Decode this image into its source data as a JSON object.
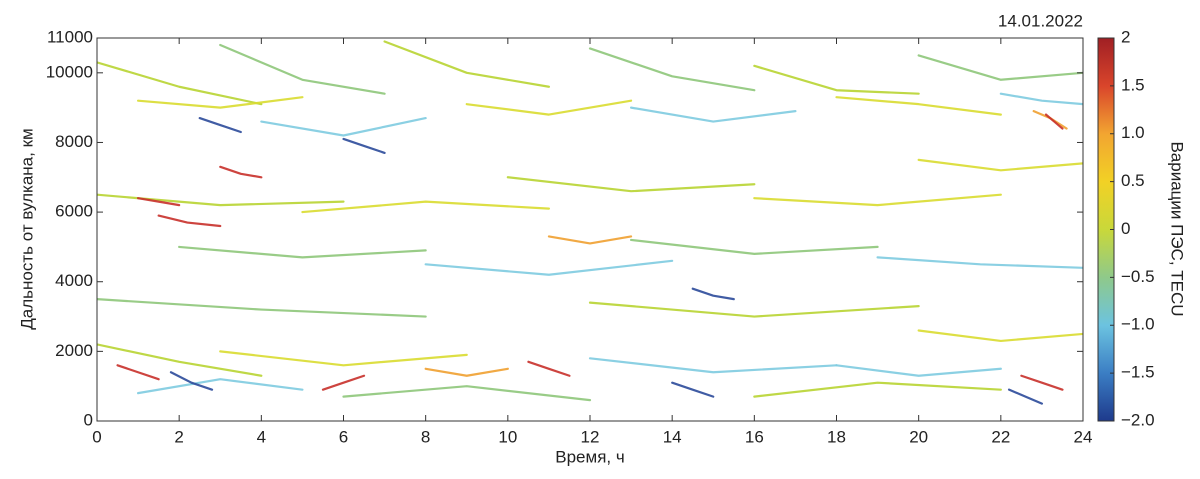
{
  "chart_data": {
    "type": "line",
    "annotation": "14.01.2022",
    "x_label": "Время, ч",
    "y_label": "Дальность от вулкана, км",
    "colorbar_label": "Вариации ПЭС, TECU",
    "xlim": [
      0,
      24
    ],
    "xticks": [
      0,
      2,
      4,
      6,
      8,
      10,
      12,
      14,
      16,
      18,
      20,
      22,
      24
    ],
    "ylim": [
      0,
      11000
    ],
    "yticks": [
      0,
      2000,
      4000,
      6000,
      8000,
      10000,
      11000
    ],
    "clim": [
      -2,
      2
    ],
    "cticks": [
      2,
      1.5,
      {
        "value": 1,
        "label": "1.0"
      },
      0.5,
      0,
      {
        "value": -0.5,
        "label": "−0.5"
      },
      {
        "value": -1,
        "label": "−1.0"
      },
      {
        "value": -1.5,
        "label": "−1.5"
      },
      {
        "value": -2,
        "label": "−2.0"
      }
    ],
    "colormap": [
      "#1e3a8c",
      "#3b7ec4",
      "#6cc3e0",
      "#8fc98a",
      "#c9d83a",
      "#f2d125",
      "#f2a531",
      "#d9452b",
      "#a01f24"
    ],
    "series": [
      {
        "color": "#b8d432",
        "x": [
          0,
          2,
          4
        ],
        "values": [
          10300,
          9600,
          9100
        ]
      },
      {
        "color": "#d9dc30",
        "x": [
          1,
          3,
          5
        ],
        "values": [
          9200,
          9000,
          9300
        ]
      },
      {
        "color": "#8ec77a",
        "x": [
          3,
          5,
          7
        ],
        "values": [
          10800,
          9800,
          9400
        ]
      },
      {
        "color": "#7ecbe0",
        "x": [
          4,
          6,
          8
        ],
        "values": [
          8600,
          8200,
          8700
        ]
      },
      {
        "color": "#2b4a9a",
        "x": [
          6,
          6.5,
          7
        ],
        "values": [
          8100,
          7900,
          7700
        ]
      },
      {
        "color": "#b8d432",
        "x": [
          7,
          9,
          11
        ],
        "values": [
          10900,
          10000,
          9600
        ]
      },
      {
        "color": "#d9dc30",
        "x": [
          9,
          11,
          13
        ],
        "values": [
          9100,
          8800,
          9200
        ]
      },
      {
        "color": "#8ec77a",
        "x": [
          12,
          14,
          16
        ],
        "values": [
          10700,
          9900,
          9500
        ]
      },
      {
        "color": "#7ecbe0",
        "x": [
          13,
          15,
          17
        ],
        "values": [
          9000,
          8600,
          8900
        ]
      },
      {
        "color": "#b8d432",
        "x": [
          16,
          18,
          20
        ],
        "values": [
          10200,
          9500,
          9400
        ]
      },
      {
        "color": "#d9dc30",
        "x": [
          18,
          20,
          22
        ],
        "values": [
          9300,
          9100,
          8800
        ]
      },
      {
        "color": "#8ec77a",
        "x": [
          20,
          22,
          24
        ],
        "values": [
          10500,
          9800,
          10000
        ]
      },
      {
        "color": "#f0a030",
        "x": [
          22.8,
          23.2,
          23.6
        ],
        "values": [
          8900,
          8700,
          8400
        ]
      },
      {
        "color": "#c8302a",
        "x": [
          23.1,
          23.3,
          23.5
        ],
        "values": [
          8800,
          8600,
          8400
        ]
      },
      {
        "color": "#7ecbe0",
        "x": [
          22,
          23,
          24
        ],
        "values": [
          9400,
          9200,
          9100
        ]
      },
      {
        "color": "#2b4a9a",
        "x": [
          2.5,
          3,
          3.5
        ],
        "values": [
          8700,
          8500,
          8300
        ]
      },
      {
        "color": "#c8302a",
        "x": [
          3,
          3.5,
          4
        ],
        "values": [
          7300,
          7100,
          7000
        ]
      },
      {
        "color": "#b8d432",
        "x": [
          0,
          3,
          6
        ],
        "values": [
          6500,
          6200,
          6300
        ]
      },
      {
        "color": "#8ec77a",
        "x": [
          2,
          5,
          8
        ],
        "values": [
          5000,
          4700,
          4900
        ]
      },
      {
        "color": "#d9dc30",
        "x": [
          5,
          8,
          11
        ],
        "values": [
          6000,
          6300,
          6100
        ]
      },
      {
        "color": "#7ecbe0",
        "x": [
          8,
          11,
          14
        ],
        "values": [
          4500,
          4200,
          4600
        ]
      },
      {
        "color": "#b8d432",
        "x": [
          10,
          13,
          16
        ],
        "values": [
          7000,
          6600,
          6800
        ]
      },
      {
        "color": "#8ec77a",
        "x": [
          13,
          16,
          19
        ],
        "values": [
          5200,
          4800,
          5000
        ]
      },
      {
        "color": "#d9dc30",
        "x": [
          16,
          19,
          22
        ],
        "values": [
          6400,
          6200,
          6500
        ]
      },
      {
        "color": "#7ecbe0",
        "x": [
          19,
          21.5,
          24
        ],
        "values": [
          4700,
          4500,
          4400
        ]
      },
      {
        "color": "#c8302a",
        "x": [
          1,
          1.5,
          2
        ],
        "values": [
          6400,
          6300,
          6200
        ]
      },
      {
        "color": "#c8302a",
        "x": [
          1.5,
          2.2,
          3
        ],
        "values": [
          5900,
          5700,
          5600
        ]
      },
      {
        "color": "#2b4a9a",
        "x": [
          14.5,
          15,
          15.5
        ],
        "values": [
          3800,
          3600,
          3500
        ]
      },
      {
        "color": "#f0a030",
        "x": [
          11,
          12,
          13
        ],
        "values": [
          5300,
          5100,
          5300
        ]
      },
      {
        "color": "#8ec77a",
        "x": [
          0,
          4,
          8
        ],
        "values": [
          3500,
          3200,
          3000
        ]
      },
      {
        "color": "#b8d432",
        "x": [
          12,
          16,
          20
        ],
        "values": [
          3400,
          3000,
          3300
        ]
      },
      {
        "color": "#d9dc30",
        "x": [
          20,
          22,
          24
        ],
        "values": [
          7500,
          7200,
          7400
        ]
      },
      {
        "color": "#b8d432",
        "x": [
          0,
          2,
          4
        ],
        "values": [
          2200,
          1700,
          1300
        ]
      },
      {
        "color": "#7ecbe0",
        "x": [
          1,
          3,
          5
        ],
        "values": [
          800,
          1200,
          900
        ]
      },
      {
        "color": "#c8302a",
        "x": [
          0.5,
          1,
          1.5
        ],
        "values": [
          1600,
          1400,
          1200
        ]
      },
      {
        "color": "#2b4a9a",
        "x": [
          1.8,
          2.3,
          2.8
        ],
        "values": [
          1400,
          1100,
          900
        ]
      },
      {
        "color": "#d9dc30",
        "x": [
          3,
          6,
          9
        ],
        "values": [
          2000,
          1600,
          1900
        ]
      },
      {
        "color": "#c8302a",
        "x": [
          5.5,
          6,
          6.5
        ],
        "values": [
          900,
          1100,
          1300
        ]
      },
      {
        "color": "#8ec77a",
        "x": [
          6,
          9,
          12
        ],
        "values": [
          700,
          1000,
          600
        ]
      },
      {
        "color": "#f0a030",
        "x": [
          8,
          9,
          10
        ],
        "values": [
          1500,
          1300,
          1500
        ]
      },
      {
        "color": "#c8302a",
        "x": [
          10.5,
          11,
          11.5
        ],
        "values": [
          1700,
          1500,
          1300
        ]
      },
      {
        "color": "#7ecbe0",
        "x": [
          12,
          15,
          18
        ],
        "values": [
          1800,
          1400,
          1600
        ]
      },
      {
        "color": "#2b4a9a",
        "x": [
          14,
          14.5,
          15
        ],
        "values": [
          1100,
          900,
          700
        ]
      },
      {
        "color": "#b8d432",
        "x": [
          16,
          19,
          22
        ],
        "values": [
          700,
          1100,
          900
        ]
      },
      {
        "color": "#7ecbe0",
        "x": [
          18,
          20,
          22
        ],
        "values": [
          1600,
          1300,
          1500
        ]
      },
      {
        "color": "#c8302a",
        "x": [
          22.5,
          23,
          23.5
        ],
        "values": [
          1300,
          1100,
          900
        ]
      },
      {
        "color": "#2b4a9a",
        "x": [
          22.2,
          22.6,
          23
        ],
        "values": [
          900,
          700,
          500
        ]
      },
      {
        "color": "#d9dc30",
        "x": [
          20,
          22,
          24
        ],
        "values": [
          2600,
          2300,
          2500
        ]
      }
    ]
  }
}
